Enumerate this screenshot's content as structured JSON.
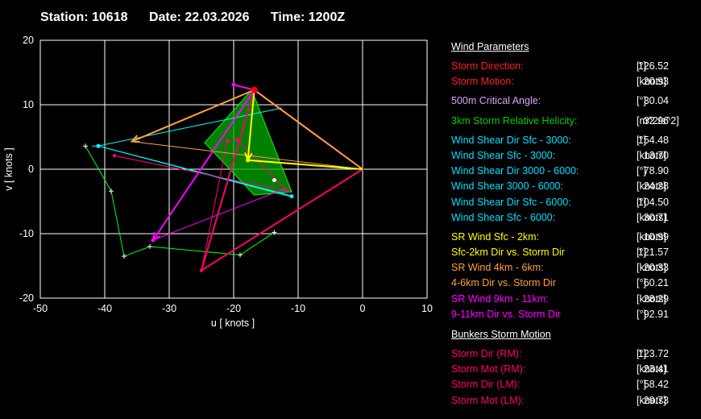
{
  "header": {
    "station": "Station: 10618",
    "date": "Date: 22.03.2026",
    "time": "Time: 1200Z"
  },
  "chart_data": {
    "type": "line",
    "title": "",
    "xlabel": "u  [ knots ]",
    "ylabel": "v  [ knots ]",
    "xlim": [
      -50,
      10
    ],
    "ylim": [
      -20,
      20
    ],
    "xticks": [
      -50,
      -40,
      -30,
      -20,
      -10,
      0,
      10
    ],
    "yticks": [
      -20,
      -10,
      0,
      10,
      20
    ],
    "grid": true,
    "colors": {
      "lower": "#ffff00",
      "middle": "#ffa040",
      "upper": "#ff00ff",
      "hodo1": "#00ff00",
      "hodo2": "#00ffff",
      "hodo3": "#ff0080",
      "bunkers": "#ff0066",
      "helicity": "#00aa00",
      "storm": "#ff0000",
      "crit": "#dd88ff"
    },
    "hodograph_green": [
      [
        -43,
        3.6
      ],
      [
        -39,
        -3.4
      ],
      [
        -37,
        -13.5
      ],
      [
        -33,
        -12
      ],
      [
        -19,
        -13.3
      ],
      [
        -13.7,
        -9.8
      ]
    ],
    "hodograph_cyan": [
      [
        -42,
        3.6
      ],
      [
        -41,
        3.6
      ],
      [
        -11.5,
        -4
      ],
      [
        -11,
        -4.4
      ]
    ],
    "hodograph_pink": [
      [
        -38.5,
        2.1
      ],
      [
        -11.6,
        -3.4
      ],
      [
        -19.5,
        4.6
      ],
      [
        -21,
        4.4
      ],
      [
        -25,
        -15.7
      ]
    ],
    "helicity_polygon": [
      [
        -24.5,
        4.1
      ],
      [
        -17.2,
        12.3
      ],
      [
        -11,
        -3.5
      ],
      [
        -16.8,
        -4
      ]
    ],
    "sr_lower": [
      [
        -16.8,
        12.3
      ],
      [
        -17.8,
        1.4
      ],
      [
        0,
        0
      ]
    ],
    "sr_middle": [
      [
        -35.8,
        4.3
      ],
      [
        -16.8,
        12.3
      ],
      [
        0,
        0
      ]
    ],
    "sr_upper": [
      [
        -32.5,
        -11
      ],
      [
        -16.8,
        12.3
      ],
      [
        -20,
        13.1
      ]
    ],
    "bunkers_triangle": [
      [
        -25,
        -15.7
      ],
      [
        -16.8,
        12.3
      ],
      [
        0,
        0
      ]
    ],
    "cyan_lines": [
      [
        [
          -41,
          3.6
        ],
        [
          -12.5,
          9.5
        ]
      ],
      [
        [
          -41,
          3.6
        ],
        [
          -11.3,
          -4.2
        ]
      ]
    ],
    "magenta_line": [
      [
        -32.5,
        -11
      ],
      [
        -12,
        -3
      ]
    ],
    "orange_line": [
      [
        -35.8,
        4.3
      ],
      [
        0,
        0
      ]
    ],
    "storm_motion_point": [
      -16.8,
      12.3
    ],
    "bunkers_lm_point": [
      -20,
      13.1
    ],
    "white_marker": [
      -13.7,
      -1.7
    ]
  },
  "params": {
    "title_wind": "Wind Parameters",
    "title_bunkers": "Bunkers Storm Motion",
    "rows": [
      {
        "label": "Storm Direction:",
        "value": "126.52",
        "unit": "[°]",
        "color": "#ff2020"
      },
      {
        "label": "Storm Motion:",
        "value": "20.93",
        "unit": "[knots]",
        "color": "#ff2020"
      },
      {
        "gap": true
      },
      {
        "label": "500m Critical Angle:",
        "value": "30.04",
        "unit": "[°]",
        "color": "#e0a0ff"
      },
      {
        "gap": true
      },
      {
        "label": "3km Storm Relative Helicity:",
        "value": "32.96",
        "unit": "[m^2/s^2]",
        "color": "#00cc00"
      },
      {
        "gap": true
      },
      {
        "label": "Wind Shear Dir Sfc - 3000:",
        "value": "154.48",
        "unit": "[°]",
        "color": "#00e0ff"
      },
      {
        "label": "Wind Shear Sfc - 3000:",
        "value": "13.70",
        "unit": "[knots]",
        "color": "#00e0ff"
      },
      {
        "label": "Wind Shear Dir 3000 - 6000:",
        "value": "78.90",
        "unit": "[°]",
        "color": "#00e0ff"
      },
      {
        "label": "Wind Shear 3000 - 6000:",
        "value": "24.28",
        "unit": "[knots]",
        "color": "#00e0ff"
      },
      {
        "label": "Wind Shear Dir Sfc - 6000:",
        "value": "104.50",
        "unit": "[°]",
        "color": "#00e0ff"
      },
      {
        "label": "Wind Shear Sfc - 6000:",
        "value": "30.71",
        "unit": "[knots]",
        "color": "#00e0ff"
      },
      {
        "gap": true
      },
      {
        "label": "SR Wind Sfc - 2km:",
        "value": "10.99",
        "unit": "[knots]",
        "color": "#ffff00"
      },
      {
        "label": "Sfc-2km Dir vs. Storm Dir",
        "value": "121.57",
        "unit": "[°]",
        "color": "#ffff00"
      },
      {
        "label": "SR Wind 4km - 6km:",
        "value": "20.33",
        "unit": "[knots]",
        "color": "#ffa040"
      },
      {
        "label": "4-6km Dir vs. Storm Dir",
        "value": "60.21",
        "unit": "[°]",
        "color": "#ffa040"
      },
      {
        "label": "SR Wind 9km - 11km:",
        "value": "28.29",
        "unit": "[knots]",
        "color": "#ff00ff"
      },
      {
        "label": "9-11km Dir vs. Storm Dir",
        "value": "92.91",
        "unit": "[°]",
        "color": "#ff00ff"
      }
    ],
    "bunkers_rows": [
      {
        "label": "Storm Dir (RM):",
        "value": "123.72",
        "unit": "[°]",
        "color": "#ff0066"
      },
      {
        "label": "Storm Mot (RM):",
        "value": "23.41",
        "unit": "[knots]",
        "color": "#ff0066"
      },
      {
        "label": "Storm Dir (LM):",
        "value": "58.42",
        "unit": "[°]",
        "color": "#ff0066"
      },
      {
        "label": "Storm Mot (LM):",
        "value": "29.73",
        "unit": "[knots]",
        "color": "#ff0066"
      }
    ]
  }
}
